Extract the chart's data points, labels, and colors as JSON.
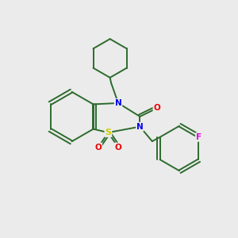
{
  "background_color": "#ebebeb",
  "bond_color": "#2d6b2d",
  "bond_width": 1.4,
  "atom_colors": {
    "N": "#0000ee",
    "O": "#ee0000",
    "S": "#cccc00",
    "F": "#dd00dd",
    "C": "#2d6b2d"
  },
  "figsize": [
    3.0,
    3.0
  ],
  "dpi": 100
}
